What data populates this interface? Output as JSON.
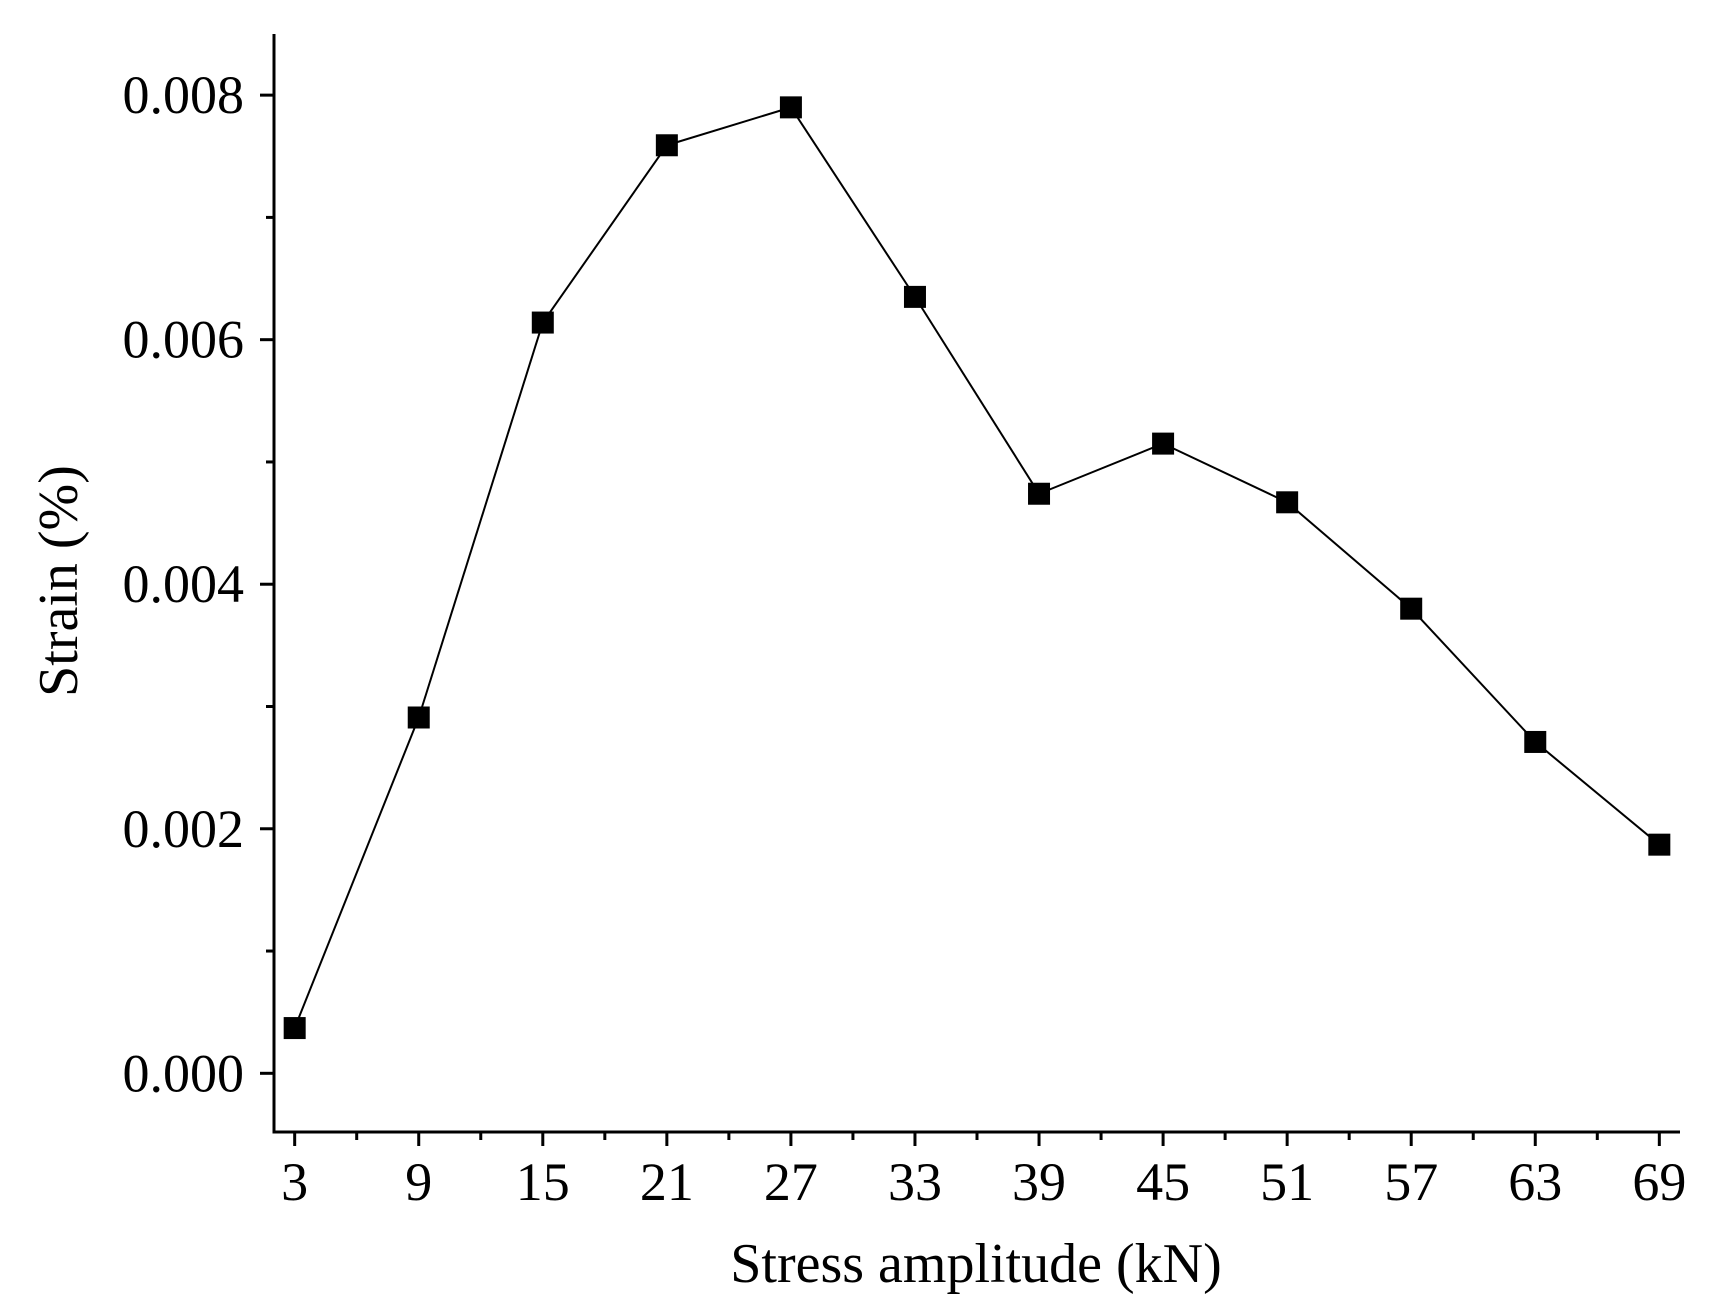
{
  "chart_data": {
    "type": "line",
    "title": "",
    "xlabel": "Stress amplitude (kN)",
    "ylabel": "Strain (%)",
    "x": [
      3,
      9,
      15,
      21,
      27,
      33,
      39,
      45,
      51,
      57,
      63,
      69
    ],
    "series": [
      {
        "name": "Strain",
        "marker": "square",
        "values": [
          0.00037,
          0.00291,
          0.00614,
          0.00759,
          0.0079,
          0.00635,
          0.00474,
          0.00515,
          0.00467,
          0.0038,
          0.00271,
          0.00187
        ]
      }
    ],
    "x_tick_labels": [
      "3",
      "9",
      "15",
      "21",
      "27",
      "33",
      "39",
      "45",
      "51",
      "57",
      "63",
      "69"
    ],
    "y_ticks": [
      0,
      0.002,
      0.004,
      0.006,
      0.008
    ],
    "y_tick_labels": [
      "0.000",
      "0.002",
      "0.004",
      "0.006",
      "0.008"
    ],
    "xlim": [
      2,
      70
    ],
    "ylim": [
      -0.00048,
      0.0085
    ],
    "grid": false,
    "legend": "none",
    "colors": {
      "line": "#000000",
      "marker": "#000000",
      "axis": "#000000",
      "background": "#ffffff"
    }
  }
}
